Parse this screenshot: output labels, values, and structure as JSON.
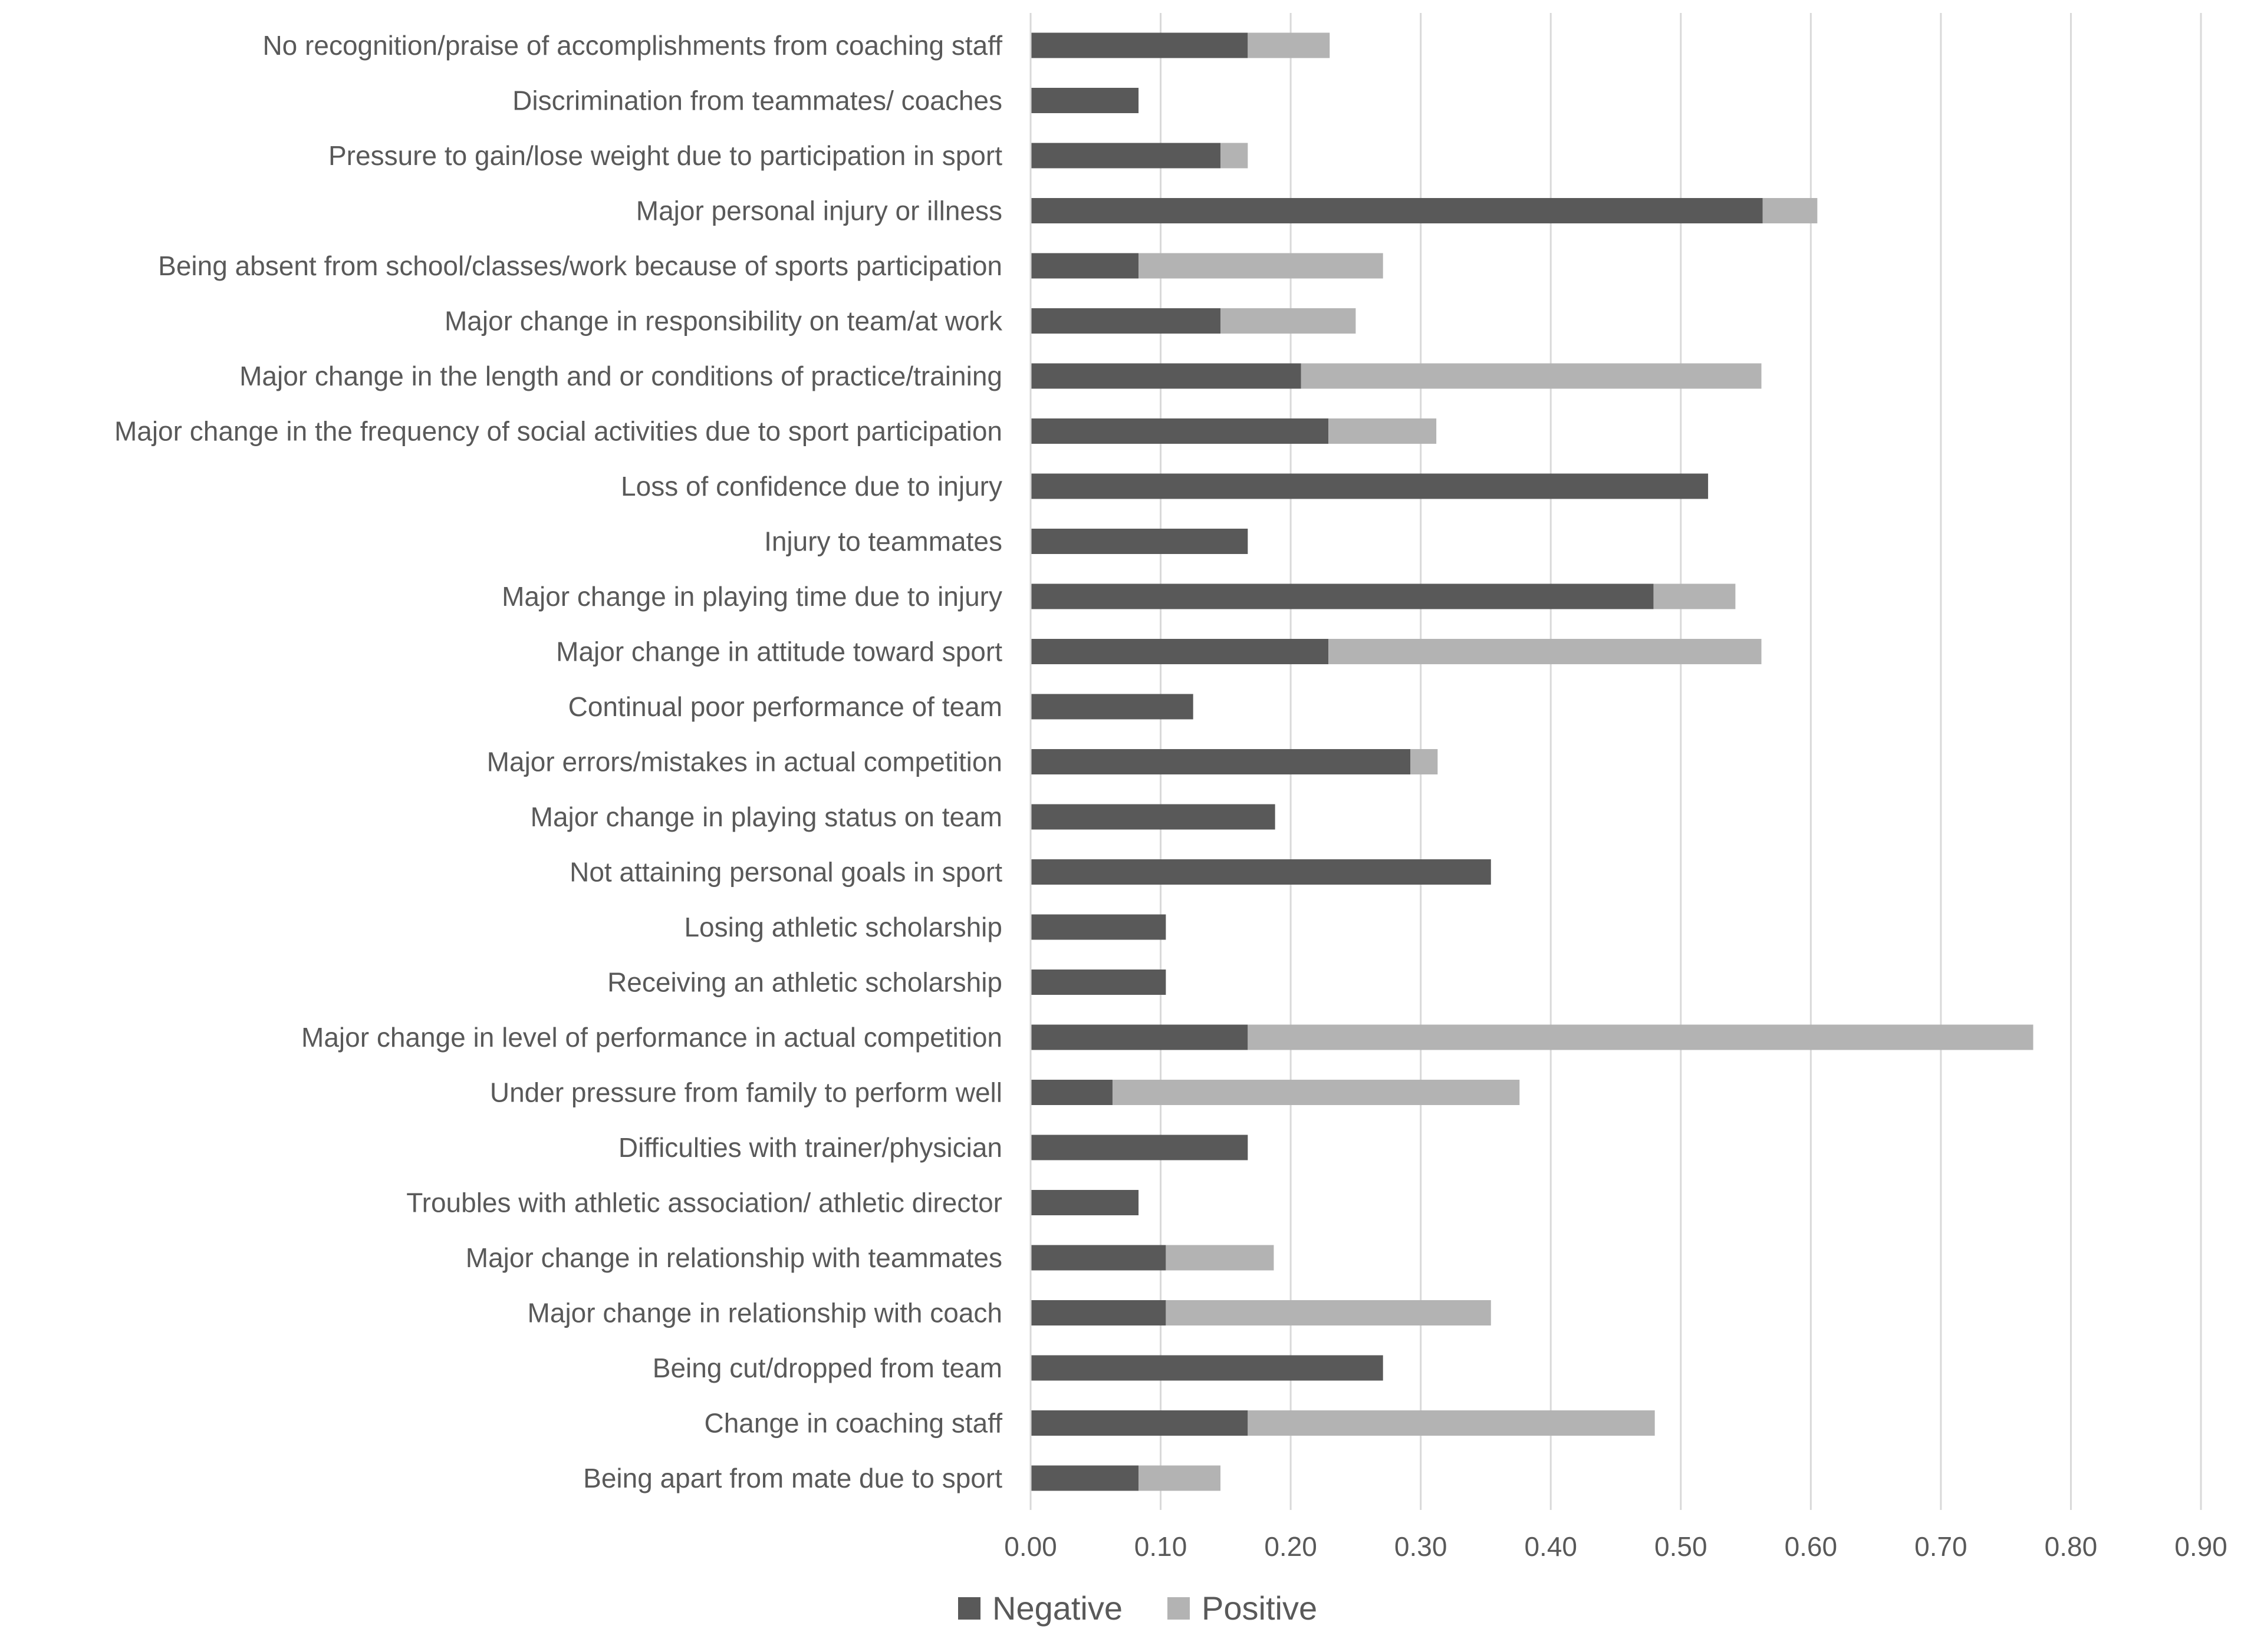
{
  "chart_data": {
    "type": "bar",
    "orientation": "horizontal",
    "stacked": true,
    "title": "",
    "xlabel": "",
    "ylabel": "",
    "xlim": [
      0,
      0.9
    ],
    "x_ticks": [
      0,
      0.1,
      0.2,
      0.3,
      0.4,
      0.5,
      0.6,
      0.7,
      0.8,
      0.9
    ],
    "x_tick_labels": [
      "0.00",
      "0.10",
      "0.20",
      "0.30",
      "0.40",
      "0.50",
      "0.60",
      "0.70",
      "0.80",
      "0.90"
    ],
    "grid": "vertical",
    "legend_position": "bottom",
    "categories": [
      "No recognition/praise of accomplishments from coaching staff",
      "Discrimination from teammates/ coaches",
      "Pressure to gain/lose weight due to participation in sport",
      "Major personal injury or illness",
      "Being absent from school/classes/work because of sports participation",
      "Major change in responsibility on team/at work",
      "Major change in the length and or conditions of practice/training",
      "Major change in the frequency of social activities due to sport participation",
      "Loss of confidence due to injury",
      "Injury to teammates",
      "Major change in playing time due to injury",
      "Major change in attitude toward sport",
      "Continual poor performance of team",
      "Major errors/mistakes in actual competition",
      "Major change in playing status on team",
      "Not attaining personal goals in sport",
      "Losing athletic scholarship",
      "Receiving an athletic scholarship",
      "Major change in level of performance in actual competition",
      "Under pressure from family to perform well",
      "Difficulties with trainer/physician",
      "Troubles with athletic association/ athletic director",
      "Major change in relationship with teammates",
      "Major change in relationship with coach",
      "Being cut/dropped from team",
      "Change in coaching staff",
      "Being apart from mate due to sport"
    ],
    "series": [
      {
        "name": "Negative",
        "color": "#595959",
        "values": [
          0.167,
          0.083,
          0.146,
          0.563,
          0.083,
          0.146,
          0.208,
          0.229,
          0.521,
          0.167,
          0.479,
          0.229,
          0.125,
          0.292,
          0.188,
          0.354,
          0.104,
          0.104,
          0.167,
          0.063,
          0.167,
          0.083,
          0.104,
          0.104,
          0.271,
          0.167,
          0.083
        ]
      },
      {
        "name": "Positive",
        "color": "#b3b3b3",
        "values": [
          0.063,
          0.0,
          0.021,
          0.042,
          0.188,
          0.104,
          0.354,
          0.083,
          0.0,
          0.0,
          0.063,
          0.333,
          0.0,
          0.021,
          0.0,
          0.0,
          0.0,
          0.0,
          0.604,
          0.313,
          0.0,
          0.0,
          0.083,
          0.25,
          0.0,
          0.313,
          0.063
        ]
      }
    ]
  }
}
